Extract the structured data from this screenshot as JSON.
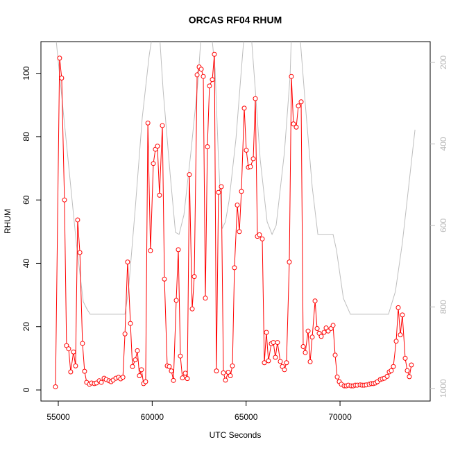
{
  "chart_data": {
    "type": "line",
    "title": "ORCAS RF04 RHUM",
    "x_label": "UTC Seconds",
    "y_label": "RHUM",
    "xlim": [
      54076,
      74800
    ],
    "xticks": [
      55000,
      60000,
      65000,
      70000
    ],
    "ylim": [
      -3.5,
      110
    ],
    "yticks": [
      0,
      20,
      40,
      60,
      80,
      100
    ],
    "y2lim": [
      1031,
      149
    ],
    "y2ticks": [
      200,
      400,
      600,
      800,
      1000
    ],
    "series": [
      {
        "color": "#ff0000",
        "markers": true,
        "x": [
          54850,
          55070,
          55180,
          55330,
          55440,
          55550,
          55660,
          55810,
          55920,
          56030,
          56150,
          56290,
          56400,
          56510,
          56660,
          56770,
          56920,
          57030,
          57180,
          57290,
          57440,
          57550,
          57700,
          57810,
          57920,
          58070,
          58210,
          58320,
          58440,
          58550,
          58690,
          58840,
          58950,
          59100,
          59210,
          59320,
          59430,
          59540,
          59650,
          59770,
          59910,
          60060,
          60170,
          60280,
          60390,
          60540,
          60650,
          60800,
          60910,
          61020,
          61130,
          61280,
          61390,
          61500,
          61610,
          61760,
          61870,
          61980,
          62130,
          62240,
          62390,
          62500,
          62610,
          62720,
          62830,
          62940,
          63050,
          63200,
          63310,
          63420,
          63530,
          63680,
          63790,
          63900,
          64050,
          64160,
          64270,
          64380,
          64530,
          64640,
          64750,
          64900,
          65010,
          65120,
          65230,
          65380,
          65490,
          65600,
          65710,
          65860,
          65970,
          66080,
          66190,
          66340,
          66450,
          66560,
          66670,
          66820,
          66930,
          67040,
          67150,
          67300,
          67410,
          67520,
          67670,
          67780,
          67930,
          68040,
          68150,
          68300,
          68410,
          68520,
          68670,
          68780,
          68890,
          69000,
          69150,
          69260,
          69370,
          69520,
          69630,
          69740,
          69850,
          69960,
          70070,
          70220,
          70330,
          70440,
          70590,
          70700,
          70810,
          70920,
          71070,
          71180,
          71290,
          71400,
          71550,
          71660,
          71770,
          71880,
          71990,
          72140,
          72250,
          72360,
          72510,
          72620,
          72730,
          72840,
          72990,
          73100,
          73210,
          73320,
          73470,
          73580,
          73690,
          73800
        ],
        "values": [
          1.0,
          104.8,
          98.5,
          60,
          14,
          13,
          5.7,
          12,
          7.6,
          53.7,
          43.4,
          14.7,
          5.9,
          2.4,
          1.8,
          2.2,
          2.0,
          2.2,
          2.9,
          2.4,
          3.7,
          3.3,
          2.9,
          2.6,
          3.1,
          3.7,
          4.0,
          3.5,
          4.0,
          17.7,
          40.4,
          21,
          7.4,
          9.5,
          12.4,
          4.5,
          6.4,
          2.0,
          2.6,
          84.3,
          44,
          71.5,
          76,
          77,
          61.5,
          83.5,
          35,
          7.6,
          7.4,
          6.0,
          3.0,
          28.3,
          44.3,
          10.7,
          3.8,
          5.3,
          3.6,
          68,
          25.6,
          35.8,
          99.5,
          102,
          101.3,
          99,
          29,
          76.8,
          96,
          98,
          106,
          6.0,
          62.4,
          64.2,
          5.4,
          3.1,
          5.6,
          4.5,
          7.6,
          38.6,
          58.4,
          50,
          62.7,
          89,
          75.7,
          70.3,
          70.5,
          73,
          92,
          48.5,
          49,
          47.7,
          8.6,
          18.2,
          9.2,
          14.6,
          15,
          10.3,
          15,
          9.0,
          7.4,
          6.4,
          8.6,
          40.4,
          99,
          84,
          83,
          89.7,
          91,
          13.7,
          11.8,
          18.6,
          8.9,
          16.7,
          28.1,
          19.4,
          17.9,
          16.9,
          18.2,
          19.6,
          18.6,
          19.4,
          20.4,
          11,
          4.1,
          2.6,
          1.8,
          1.3,
          1.3,
          1.5,
          1.3,
          1.3,
          1.5,
          1.5,
          1.6,
          1.5,
          1.5,
          1.6,
          1.8,
          2.0,
          2.0,
          2.2,
          2.6,
          3.3,
          3.5,
          3.7,
          4.3,
          5.7,
          6.1,
          7.4,
          15.4,
          26,
          17.4,
          23.7,
          10,
          6.1,
          4.2,
          7.9
        ]
      },
      {
        "color": "#bebebe",
        "axis": "y2",
        "markers": false,
        "x": [
          54850,
          55410,
          55960,
          56330,
          56510,
          56700,
          56880,
          58550,
          58730,
          59100,
          59470,
          59840,
          60020,
          60390,
          60580,
          60950,
          61240,
          61430,
          61690,
          62060,
          62430,
          62610,
          63160,
          63350,
          63530,
          63720,
          63900,
          64090,
          64460,
          64750,
          64900,
          65270,
          65490,
          65750,
          66120,
          66380,
          66600,
          67040,
          67340,
          67410,
          67860,
          68150,
          68520,
          68820,
          69630,
          69810,
          70180,
          70550,
          72580,
          72950,
          73320,
          73690,
          73990
        ],
        "values": [
          130,
          387,
          643,
          787,
          804,
          818,
          818,
          818,
          762,
          557,
          336,
          183,
          130,
          130,
          268,
          472,
          617,
          622,
          574,
          421,
          251,
          130,
          130,
          217,
          438,
          608,
          591,
          540,
          387,
          217,
          130,
          130,
          268,
          438,
          591,
          622,
          600,
          421,
          234,
          130,
          130,
          302,
          506,
          622,
          622,
          660,
          779,
          818,
          818,
          762,
          643,
          489,
          365
        ]
      }
    ]
  }
}
